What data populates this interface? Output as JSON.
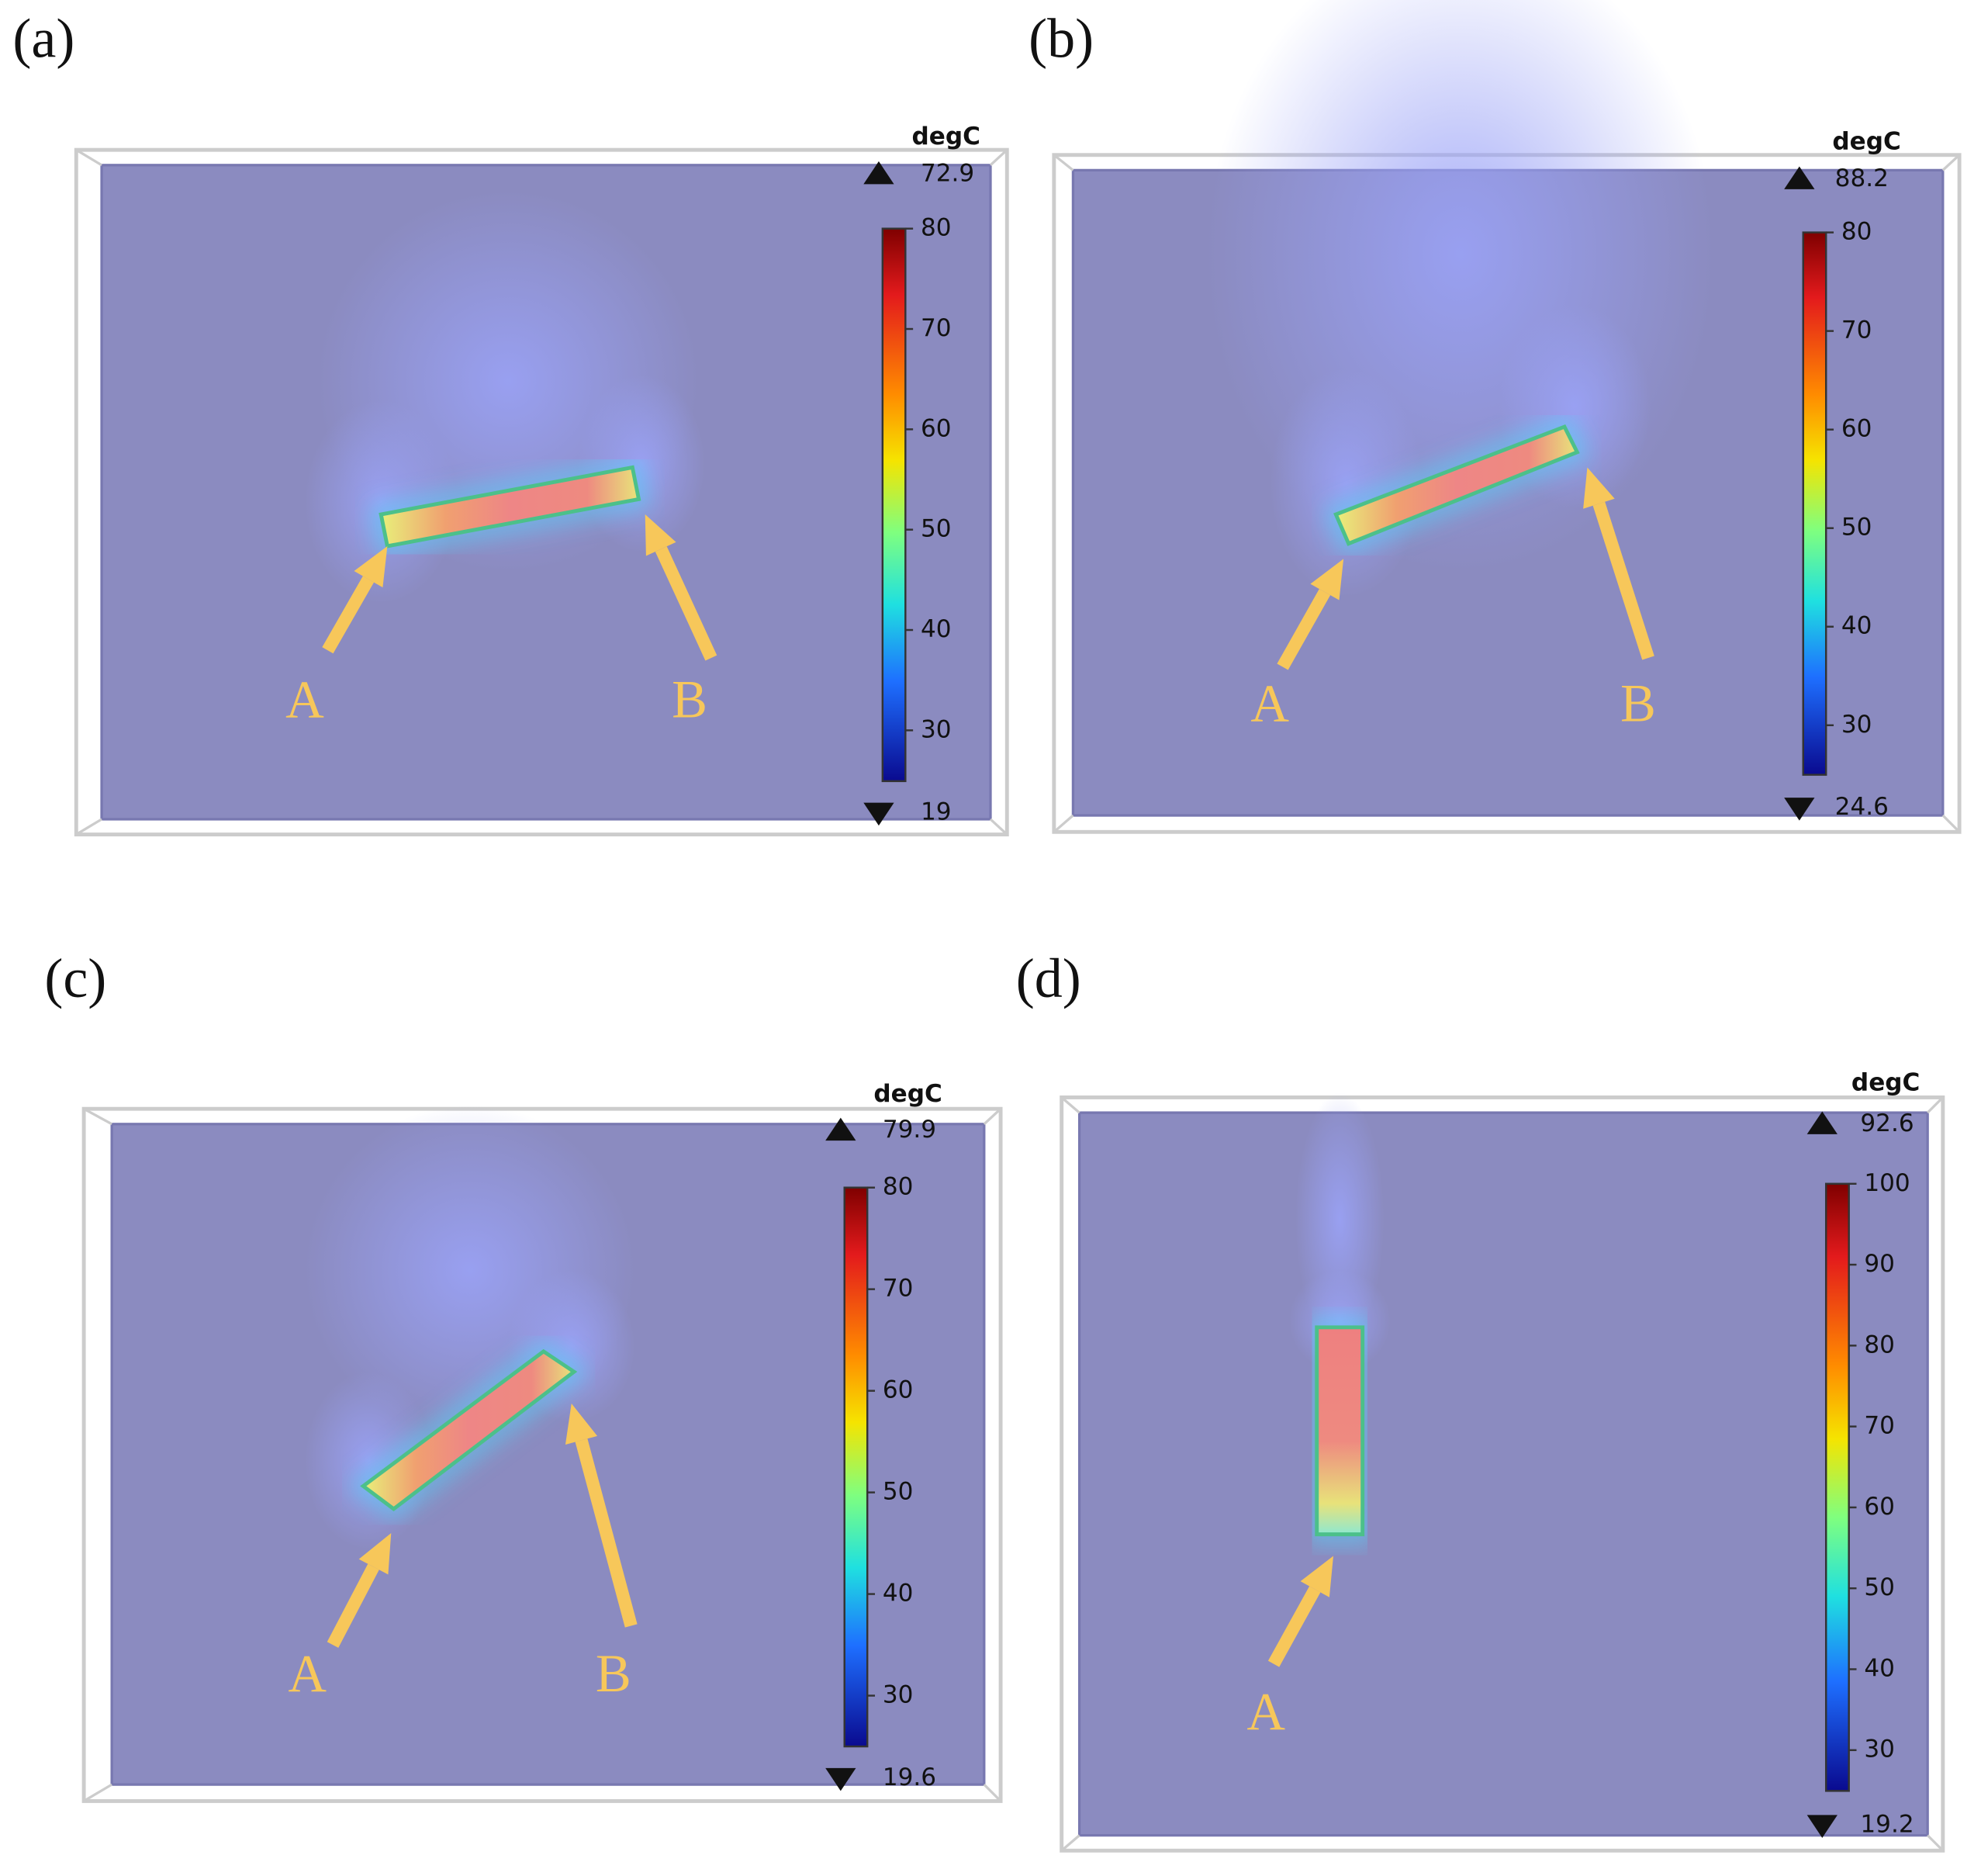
{
  "panels": [
    {
      "label": "(a)",
      "unit": "degC",
      "max": 72.9,
      "min": 19,
      "colorbar_ticks": [
        80,
        70,
        60,
        50,
        40,
        30
      ],
      "annotations": [
        "A",
        "B"
      ]
    },
    {
      "label": "(b)",
      "unit": "degC",
      "max": 88.2,
      "min": 24.6,
      "colorbar_ticks": [
        80,
        70,
        60,
        50,
        40,
        30
      ],
      "annotations": [
        "A",
        "B"
      ]
    },
    {
      "label": "(c)",
      "unit": "degC",
      "max": 79.9,
      "min": 19.6,
      "colorbar_ticks": [
        80,
        70,
        60,
        50,
        40,
        30
      ],
      "annotations": [
        "A",
        "B"
      ]
    },
    {
      "label": "(d)",
      "unit": "degC",
      "max": 92.6,
      "min": 19.2,
      "colorbar_ticks": [
        100,
        90,
        80,
        70,
        60,
        50,
        40,
        30
      ],
      "annotations": [
        "A"
      ]
    }
  ]
}
